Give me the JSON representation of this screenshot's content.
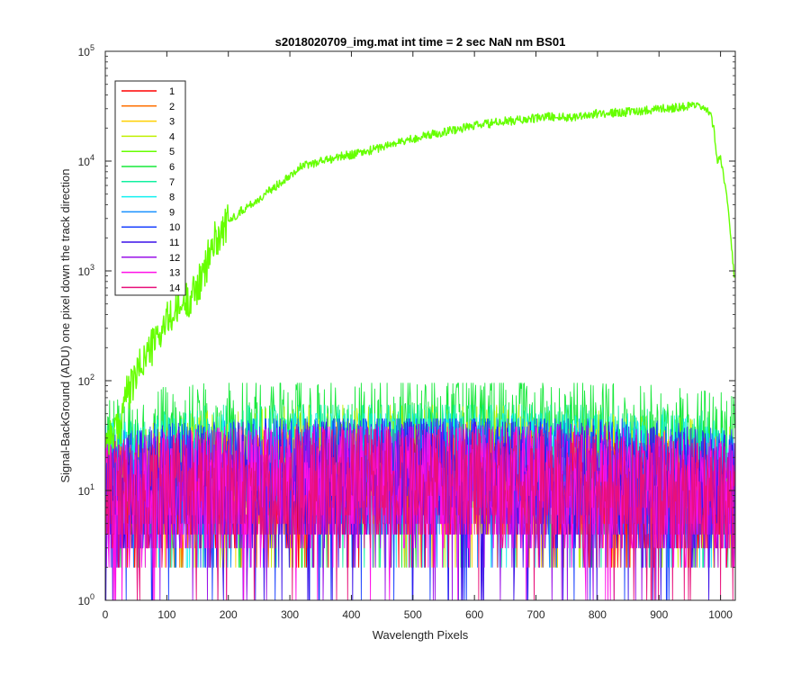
{
  "chart_data": {
    "type": "line",
    "title": "s2018020709_img.mat int time = 2 sec  NaN nm BS01",
    "xlabel": "Wavelength Pixels",
    "ylabel": "Signal-BackGround (ADU) one pixel down the track direction",
    "xlim": [
      0,
      1024
    ],
    "ylim": [
      1,
      100000
    ],
    "yscale": "log",
    "x_ticks": [
      0,
      100,
      200,
      300,
      400,
      500,
      600,
      700,
      800,
      900,
      1000
    ],
    "y_ticks": [
      {
        "value": 1,
        "base": "10",
        "exp": "0"
      },
      {
        "value": 10,
        "base": "10",
        "exp": "1"
      },
      {
        "value": 100,
        "base": "10",
        "exp": "2"
      },
      {
        "value": 1000,
        "base": "10",
        "exp": "3"
      },
      {
        "value": 10000,
        "base": "10",
        "exp": "4"
      },
      {
        "value": 100000,
        "base": "10",
        "exp": "5"
      }
    ],
    "grid": false,
    "legend_position": "top-left",
    "dominant_series": {
      "name": "5",
      "x": [
        0,
        20,
        25,
        30,
        40,
        50,
        60,
        80,
        100,
        120,
        140,
        160,
        170,
        180,
        200,
        220,
        250,
        270,
        300,
        320,
        350,
        400,
        420,
        450,
        500,
        550,
        600,
        650,
        700,
        720,
        750,
        800,
        850,
        900,
        920,
        940,
        960,
        975,
        985,
        990,
        995,
        1000,
        1010,
        1020,
        1024
      ],
      "y": [
        30,
        35,
        40,
        70,
        80,
        110,
        150,
        220,
        350,
        450,
        600,
        900,
        1500,
        2000,
        2800,
        3500,
        4500,
        5500,
        7500,
        9000,
        10000,
        11500,
        12000,
        13500,
        16000,
        18500,
        21000,
        23000,
        24500,
        25500,
        25000,
        27000,
        28000,
        30000,
        30500,
        31500,
        31500,
        30000,
        25000,
        18000,
        10000,
        11000,
        5000,
        1200,
        700
      ]
    },
    "series": [
      {
        "name": "1",
        "color": "#ff0000",
        "base": 7,
        "amp": 2.0,
        "y_min": 2,
        "y_max": 34
      },
      {
        "name": "2",
        "color": "#ff7000",
        "base": 8,
        "amp": 2.0,
        "y_min": 2,
        "y_max": 38
      },
      {
        "name": "3",
        "color": "#ffd000",
        "base": 9,
        "amp": 2.1,
        "y_min": 2,
        "y_max": 48
      },
      {
        "name": "4",
        "color": "#c0f000",
        "base": 12,
        "amp": 2.2,
        "y_min": 2,
        "y_max": 60
      },
      {
        "name": "5",
        "color": "#66ff00",
        "base": 30,
        "amp": 1.0,
        "y_min": 1,
        "y_max": 100000
      },
      {
        "name": "6",
        "color": "#16e83a",
        "base": 22,
        "amp": 2.2,
        "y_min": 2,
        "y_max": 95
      },
      {
        "name": "7",
        "color": "#10f0a0",
        "base": 14,
        "amp": 2.2,
        "y_min": 2,
        "y_max": 60
      },
      {
        "name": "8",
        "color": "#10f0f0",
        "base": 12,
        "amp": 2.2,
        "y_min": 2,
        "y_max": 50
      },
      {
        "name": "9",
        "color": "#1890ff",
        "base": 10,
        "amp": 2.2,
        "y_min": 2,
        "y_max": 45
      },
      {
        "name": "10",
        "color": "#1840ff",
        "base": 10,
        "amp": 2.3,
        "y_min": 1,
        "y_max": 45
      },
      {
        "name": "11",
        "color": "#3a10e8",
        "base": 9,
        "amp": 2.3,
        "y_min": 1,
        "y_max": 42
      },
      {
        "name": "12",
        "color": "#9a10e8",
        "base": 8,
        "amp": 2.3,
        "y_min": 1,
        "y_max": 40
      },
      {
        "name": "13",
        "color": "#ff10e8",
        "base": 8,
        "amp": 2.3,
        "y_min": 1,
        "y_max": 38
      },
      {
        "name": "14",
        "color": "#e8107a",
        "base": 8,
        "amp": 2.2,
        "y_min": 1,
        "y_max": 36
      }
    ]
  }
}
